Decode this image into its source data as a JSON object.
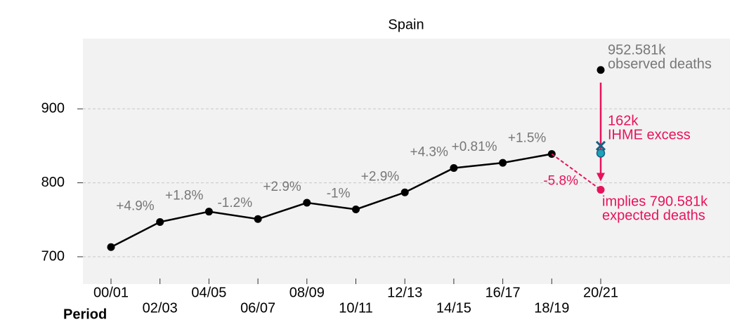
{
  "chart_data": {
    "type": "line",
    "title": "Spain",
    "x_label": "Period",
    "categories": [
      "00/01",
      "02/03",
      "04/05",
      "06/07",
      "08/09",
      "10/11",
      "12/13",
      "14/15",
      "16/17",
      "18/19",
      "20/21"
    ],
    "values": [
      713,
      747,
      761,
      751,
      773,
      764,
      787,
      820,
      827,
      839,
      null
    ],
    "color": "#000000",
    "change_labels": [
      "+4.9%",
      "+1.8%",
      "-1.2%",
      "+2.9%",
      "-1%",
      "+2.9%",
      "+4.3%",
      "+0.81%",
      "+1.5%",
      "-5.8%"
    ],
    "observed": 952.581,
    "expected": 790.581,
    "ihme_estimate": 850,
    "other_estimate": 840,
    "annotations": {
      "observed_value": "952.581k",
      "observed_text": "observed deaths",
      "excess_value": "162k",
      "excess_text": "IHME excess",
      "expected_value": "implies 790.581k",
      "expected_text": "expected deaths"
    },
    "highlight_color": "#e8125c",
    "ihme_color": "#1b5f80",
    "other_color": "#1ba3b8",
    "ylim": [
      663,
      995
    ],
    "yticks": [
      700,
      800,
      900
    ],
    "grid": true
  }
}
